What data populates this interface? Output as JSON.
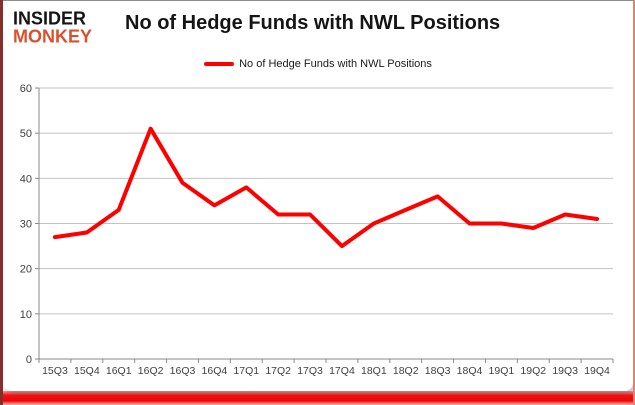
{
  "logo": {
    "line1": "INSIDER",
    "line2": "MONKEY"
  },
  "header": {
    "title": "No of Hedge Funds with NWL Positions"
  },
  "legend": {
    "label": "No of Hedge Funds with NWL Positions"
  },
  "chart_data": {
    "type": "line",
    "title": "No of Hedge Funds with NWL Positions",
    "categories": [
      "15Q3",
      "15Q4",
      "16Q1",
      "16Q2",
      "16Q3",
      "16Q4",
      "17Q1",
      "17Q2",
      "17Q3",
      "17Q4",
      "18Q1",
      "18Q2",
      "18Q3",
      "18Q4",
      "19Q1",
      "19Q2",
      "19Q3",
      "19Q4"
    ],
    "values": [
      27,
      28,
      33,
      51,
      39,
      34,
      38,
      32,
      32,
      25,
      30,
      33,
      36,
      30,
      30,
      29,
      32,
      31
    ],
    "series_name": "No of Hedge Funds with NWL Positions",
    "xlabel": "",
    "ylabel": "",
    "ylim": [
      0,
      60
    ],
    "yticks": [
      0,
      10,
      20,
      30,
      40,
      50,
      60
    ],
    "grid": true,
    "legend_position": "top-center",
    "line_color": "#fe0000"
  },
  "colors": {
    "line": "#fe0000",
    "gridline": "#c3c3c3",
    "axis": "#898989",
    "tick_text": "#3f3f3f",
    "logo_red": "#d9502e",
    "frame_bottom": "#ee0404"
  }
}
